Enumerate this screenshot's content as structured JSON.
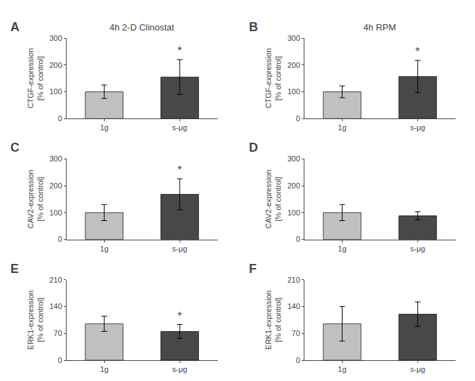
{
  "chart_data": [
    {
      "type": "bar",
      "title": "4h 2-D Clinostat",
      "ylabel": "CTGF-expression\n[% of control]",
      "categories": [
        "1g",
        "s-μg"
      ],
      "values": [
        100,
        155
      ],
      "errors": [
        25,
        65
      ],
      "colors": [
        "#c0c0c0",
        "#484848"
      ],
      "ylim": [
        0,
        300
      ],
      "yticks": [
        0,
        100,
        200,
        300
      ],
      "grid": false,
      "annotations": [
        {
          "text": "A"
        },
        {
          "text": "*",
          "category": "s-μg"
        }
      ]
    },
    {
      "type": "bar",
      "title": "4h RPM",
      "ylabel": "CTGF-expression\n[% of control]",
      "categories": [
        "1g",
        "s-μg"
      ],
      "values": [
        100,
        157
      ],
      "errors": [
        22,
        60
      ],
      "colors": [
        "#c0c0c0",
        "#484848"
      ],
      "ylim": [
        0,
        300
      ],
      "yticks": [
        0,
        100,
        200,
        300
      ],
      "grid": false,
      "annotations": [
        {
          "text": "B"
        },
        {
          "text": "*",
          "category": "s-μg"
        }
      ]
    },
    {
      "type": "bar",
      "ylabel": "CAV2-expression\n[% of control]",
      "categories": [
        "1g",
        "s-μg"
      ],
      "values": [
        100,
        168
      ],
      "errors": [
        30,
        58
      ],
      "colors": [
        "#c0c0c0",
        "#484848"
      ],
      "ylim": [
        0,
        300
      ],
      "yticks": [
        0,
        100,
        200,
        300
      ],
      "grid": false,
      "annotations": [
        {
          "text": "C"
        },
        {
          "text": "*",
          "category": "s-μg"
        }
      ]
    },
    {
      "type": "bar",
      "ylabel": "CAV2-expression\n[% of control]",
      "categories": [
        "1g",
        "s-μg"
      ],
      "values": [
        100,
        88
      ],
      "errors": [
        30,
        15
      ],
      "colors": [
        "#c0c0c0",
        "#484848"
      ],
      "ylim": [
        0,
        300
      ],
      "yticks": [
        0,
        100,
        200,
        300
      ],
      "grid": false,
      "annotations": [
        {
          "text": "D"
        }
      ]
    },
    {
      "type": "bar",
      "ylabel": "ERK1-expression\n[% of control]",
      "categories": [
        "1g",
        "s-μg"
      ],
      "values": [
        95,
        75
      ],
      "errors": [
        20,
        18
      ],
      "colors": [
        "#c0c0c0",
        "#484848"
      ],
      "ylim": [
        0,
        210
      ],
      "yticks": [
        0,
        70,
        140,
        210
      ],
      "grid": false,
      "annotations": [
        {
          "text": "E"
        },
        {
          "text": "*",
          "category": "s-μg"
        }
      ]
    },
    {
      "type": "bar",
      "ylabel": "ERK1-expression\n[% of control]",
      "categories": [
        "1g",
        "s-μg"
      ],
      "values": [
        95,
        120
      ],
      "errors": [
        45,
        32
      ],
      "colors": [
        "#c0c0c0",
        "#484848"
      ],
      "ylim": [
        0,
        210
      ],
      "yticks": [
        0,
        70,
        140,
        210
      ],
      "grid": false,
      "annotations": [
        {
          "text": "F"
        }
      ]
    }
  ]
}
